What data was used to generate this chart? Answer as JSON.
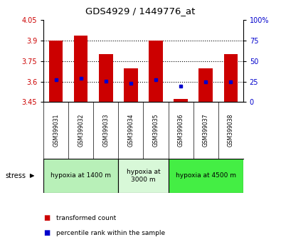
{
  "title": "GDS4929 / 1449776_at",
  "categories": [
    "GSM399031",
    "GSM399032",
    "GSM399033",
    "GSM399034",
    "GSM399035",
    "GSM399036",
    "GSM399037",
    "GSM399038"
  ],
  "bar_bottom": 3.45,
  "bar_tops": [
    3.9,
    3.935,
    3.8,
    3.695,
    3.9,
    3.475,
    3.695,
    3.8
  ],
  "blue_values": [
    3.615,
    3.625,
    3.605,
    3.59,
    3.615,
    3.565,
    3.6,
    3.6
  ],
  "ylim_left": [
    3.45,
    4.05
  ],
  "ylim_right": [
    0,
    100
  ],
  "yticks_left": [
    3.45,
    3.6,
    3.75,
    3.9,
    4.05
  ],
  "yticks_right": [
    0,
    25,
    50,
    75,
    100
  ],
  "ytick_labels_left": [
    "3.45",
    "3.6",
    "3.75",
    "3.9",
    "4.05"
  ],
  "ytick_labels_right": [
    "0",
    "25",
    "50",
    "75",
    "100%"
  ],
  "dotted_lines": [
    3.9,
    3.75,
    3.6
  ],
  "groups": [
    {
      "label": "hypoxia at 1400 m",
      "start": 0,
      "end": 3,
      "color": "#b8f0b8"
    },
    {
      "label": "hypoxia at\n3000 m",
      "start": 3,
      "end": 5,
      "color": "#d8f8d8"
    },
    {
      "label": "hypoxia at 4500 m",
      "start": 5,
      "end": 8,
      "color": "#44ee44"
    }
  ],
  "stress_label": "stress",
  "bar_color": "#cc0000",
  "blue_color": "#0000cc",
  "bar_width": 0.55,
  "legend_items": [
    {
      "color": "#cc0000",
      "label": "transformed count"
    },
    {
      "color": "#0000cc",
      "label": "percentile rank within the sample"
    }
  ],
  "background_color": "#ffffff",
  "tick_label_color_left": "#cc0000",
  "tick_label_color_right": "#0000cc",
  "plot_bg": "#ffffff",
  "label_area_bg": "#c8c8c8"
}
